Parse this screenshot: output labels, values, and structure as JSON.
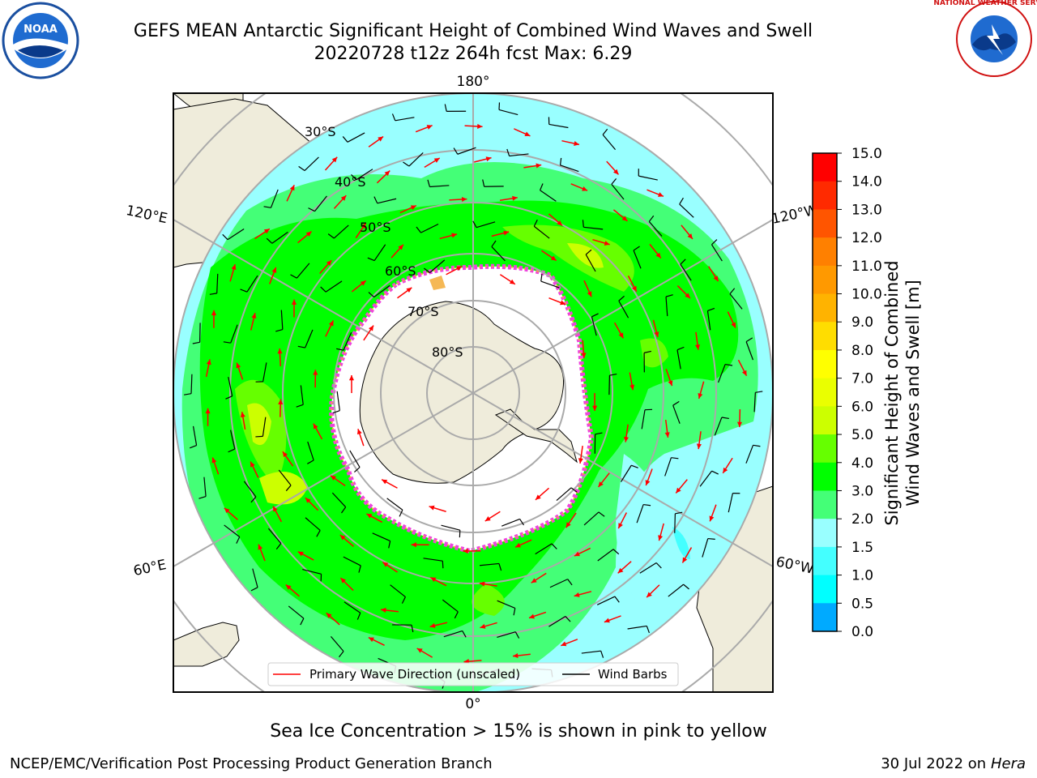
{
  "title_line1": "GEFS MEAN Antarctic Significant Height of Combined Wind Waves and Swell",
  "title_line2": "20220728 t12z 264h fcst   Max: 6.29",
  "longitude_labels": {
    "top": "180°",
    "bottom": "0°",
    "upper_left": "120°E",
    "upper_right": "120°W",
    "lower_left": "60°E",
    "lower_right": "60°W"
  },
  "latitude_labels": [
    "30°S",
    "40°S",
    "50°S",
    "60°S",
    "70°S",
    "80°S"
  ],
  "legend": {
    "wave_direction": "Primary Wave Direction (unscaled)",
    "wind_barbs": "Wind Barbs"
  },
  "colorbar": {
    "label_line1": "Significant Height of Combined",
    "label_line2": "Wind Waves and Swell [m]",
    "ticks": [
      "15.0",
      "14.0",
      "13.0",
      "12.0",
      "11.0",
      "10.0",
      "9.0",
      "8.0",
      "7.0",
      "6.0",
      "5.0",
      "4.0",
      "3.0",
      "2.0",
      "1.5",
      "1.0",
      "0.5",
      "0.0"
    ],
    "colors": [
      "#ff0000",
      "#ff2a00",
      "#ff5500",
      "#ff8000",
      "#ff9900",
      "#ffb300",
      "#ffdd00",
      "#ffff00",
      "#eaff00",
      "#ccff00",
      "#66ff00",
      "#00ff00",
      "#44ff77",
      "#99ffff",
      "#44ffff",
      "#00ffff",
      "#00aaff",
      "#0066ff",
      "#0000ff"
    ]
  },
  "footer_note": "Sea Ice Concentration > 15% is shown in pink to yellow",
  "footer_left": "NCEP/EMC/Verification Post Processing Product Generation Branch",
  "footer_right_date": "30 Jul 2022 on ",
  "footer_right_host": "Hera",
  "logos": {
    "left": "NOAA",
    "right_text": "NATIONAL WEATHER SERVICE"
  }
}
